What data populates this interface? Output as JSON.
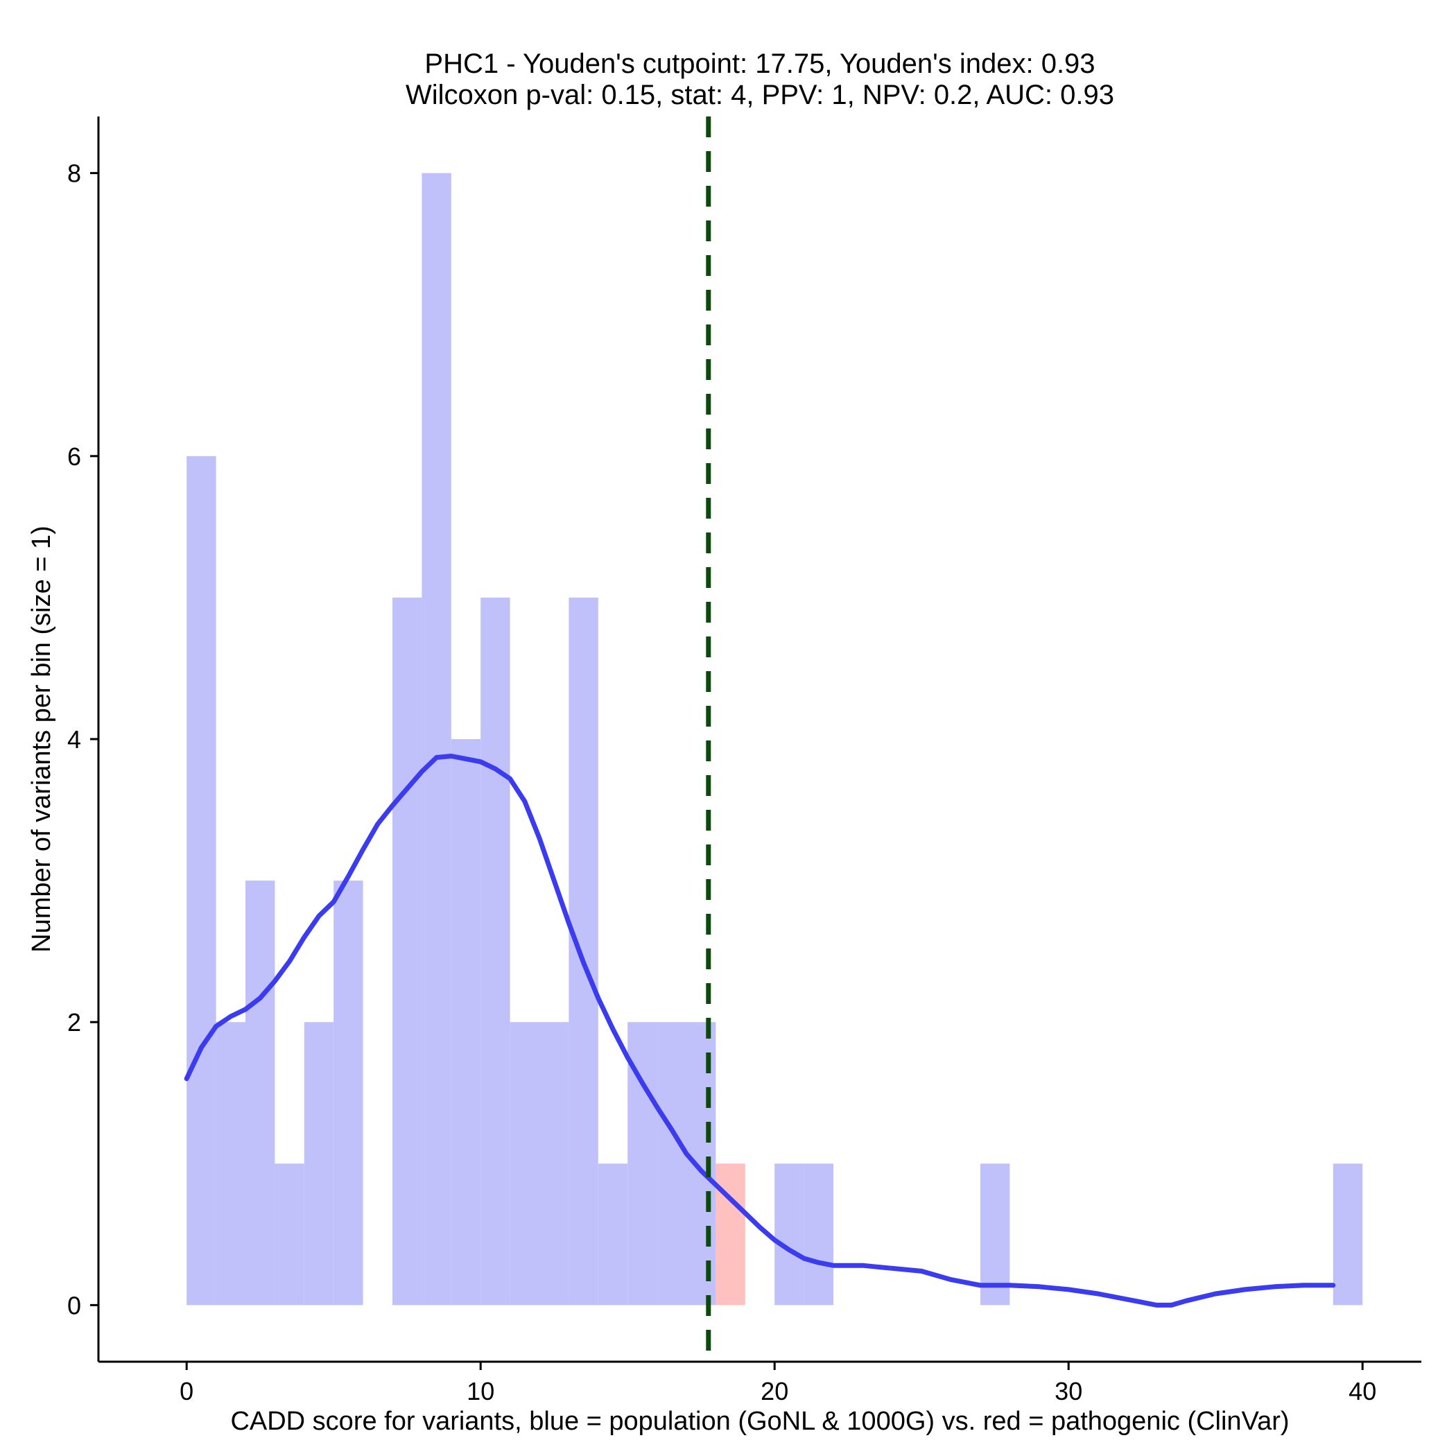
{
  "chart_data": {
    "type": "histogram",
    "title_line1": "PHC1 - Youden's cutpoint: 17.75, Youden's index: 0.93",
    "title_line2": "Wilcoxon p-val: 0.15, stat: 4, PPV: 1, NPV: 0.2, AUC: 0.93",
    "xlabel": "CADD score for variants, blue = population (GoNL & 1000G) vs. red = pathogenic (ClinVar)",
    "ylabel": "Number of variants per bin (size = 1)",
    "xlim": [
      -3,
      42
    ],
    "ylim": [
      -0.4,
      8.4
    ],
    "x_ticks": [
      0,
      10,
      20,
      30,
      40
    ],
    "y_ticks": [
      0,
      2,
      4,
      6,
      8
    ],
    "bin_size": 1,
    "series": [
      {
        "color": "#c0c0fa",
        "bins": [
          {
            "start": 0,
            "count": 6
          },
          {
            "start": 1,
            "count": 2
          },
          {
            "start": 2,
            "count": 3
          },
          {
            "start": 3,
            "count": 1
          },
          {
            "start": 4,
            "count": 2
          },
          {
            "start": 5,
            "count": 3
          },
          {
            "start": 7,
            "count": 5
          },
          {
            "start": 8,
            "count": 8
          },
          {
            "start": 9,
            "count": 4
          },
          {
            "start": 10,
            "count": 5
          },
          {
            "start": 11,
            "count": 2
          },
          {
            "start": 12,
            "count": 2
          },
          {
            "start": 13,
            "count": 5
          },
          {
            "start": 14,
            "count": 1
          },
          {
            "start": 15,
            "count": 2
          },
          {
            "start": 16,
            "count": 2
          },
          {
            "start": 17,
            "count": 2
          },
          {
            "start": 20,
            "count": 1
          },
          {
            "start": 21,
            "count": 1
          },
          {
            "start": 27,
            "count": 1
          },
          {
            "start": 39,
            "count": 1
          }
        ]
      },
      {
        "color": "#ffc0c0",
        "bins": [
          {
            "start": 18,
            "count": 1
          }
        ]
      }
    ],
    "density_curve": {
      "color": "#3b3bf0",
      "x": [
        0,
        0.5,
        1,
        1.5,
        2,
        2.5,
        3,
        3.5,
        4,
        4.5,
        5,
        5.5,
        6,
        6.5,
        7,
        7.5,
        8,
        8.5,
        9,
        9.5,
        10,
        10.5,
        11,
        11.5,
        12,
        12.5,
        13,
        13.5,
        14,
        14.5,
        15,
        15.5,
        16,
        16.5,
        17,
        17.5,
        18,
        18.5,
        19,
        19.5,
        20,
        20.5,
        21,
        21.5,
        22,
        22.5,
        23,
        23.5,
        24,
        25,
        26,
        27,
        28,
        29,
        30,
        31,
        32,
        33,
        33.5,
        34,
        35,
        36,
        37,
        38,
        39
      ],
      "y": [
        1.6,
        1.82,
        1.97,
        2.04,
        2.09,
        2.17,
        2.29,
        2.43,
        2.6,
        2.75,
        2.85,
        3.03,
        3.22,
        3.4,
        3.53,
        3.65,
        3.77,
        3.87,
        3.88,
        3.86,
        3.84,
        3.79,
        3.72,
        3.56,
        3.3,
        3.0,
        2.7,
        2.42,
        2.17,
        1.95,
        1.75,
        1.57,
        1.4,
        1.24,
        1.07,
        0.95,
        0.85,
        0.75,
        0.65,
        0.55,
        0.46,
        0.39,
        0.33,
        0.3,
        0.28,
        0.28,
        0.28,
        0.27,
        0.26,
        0.24,
        0.18,
        0.14,
        0.14,
        0.13,
        0.11,
        0.08,
        0.04,
        0.0,
        0.0,
        0.03,
        0.08,
        0.11,
        0.13,
        0.14,
        0.14
      ]
    },
    "cutpoint": {
      "x": 17.75,
      "color": "#0b4a0b",
      "style": "dashed"
    },
    "grid": false,
    "legend": "none"
  }
}
